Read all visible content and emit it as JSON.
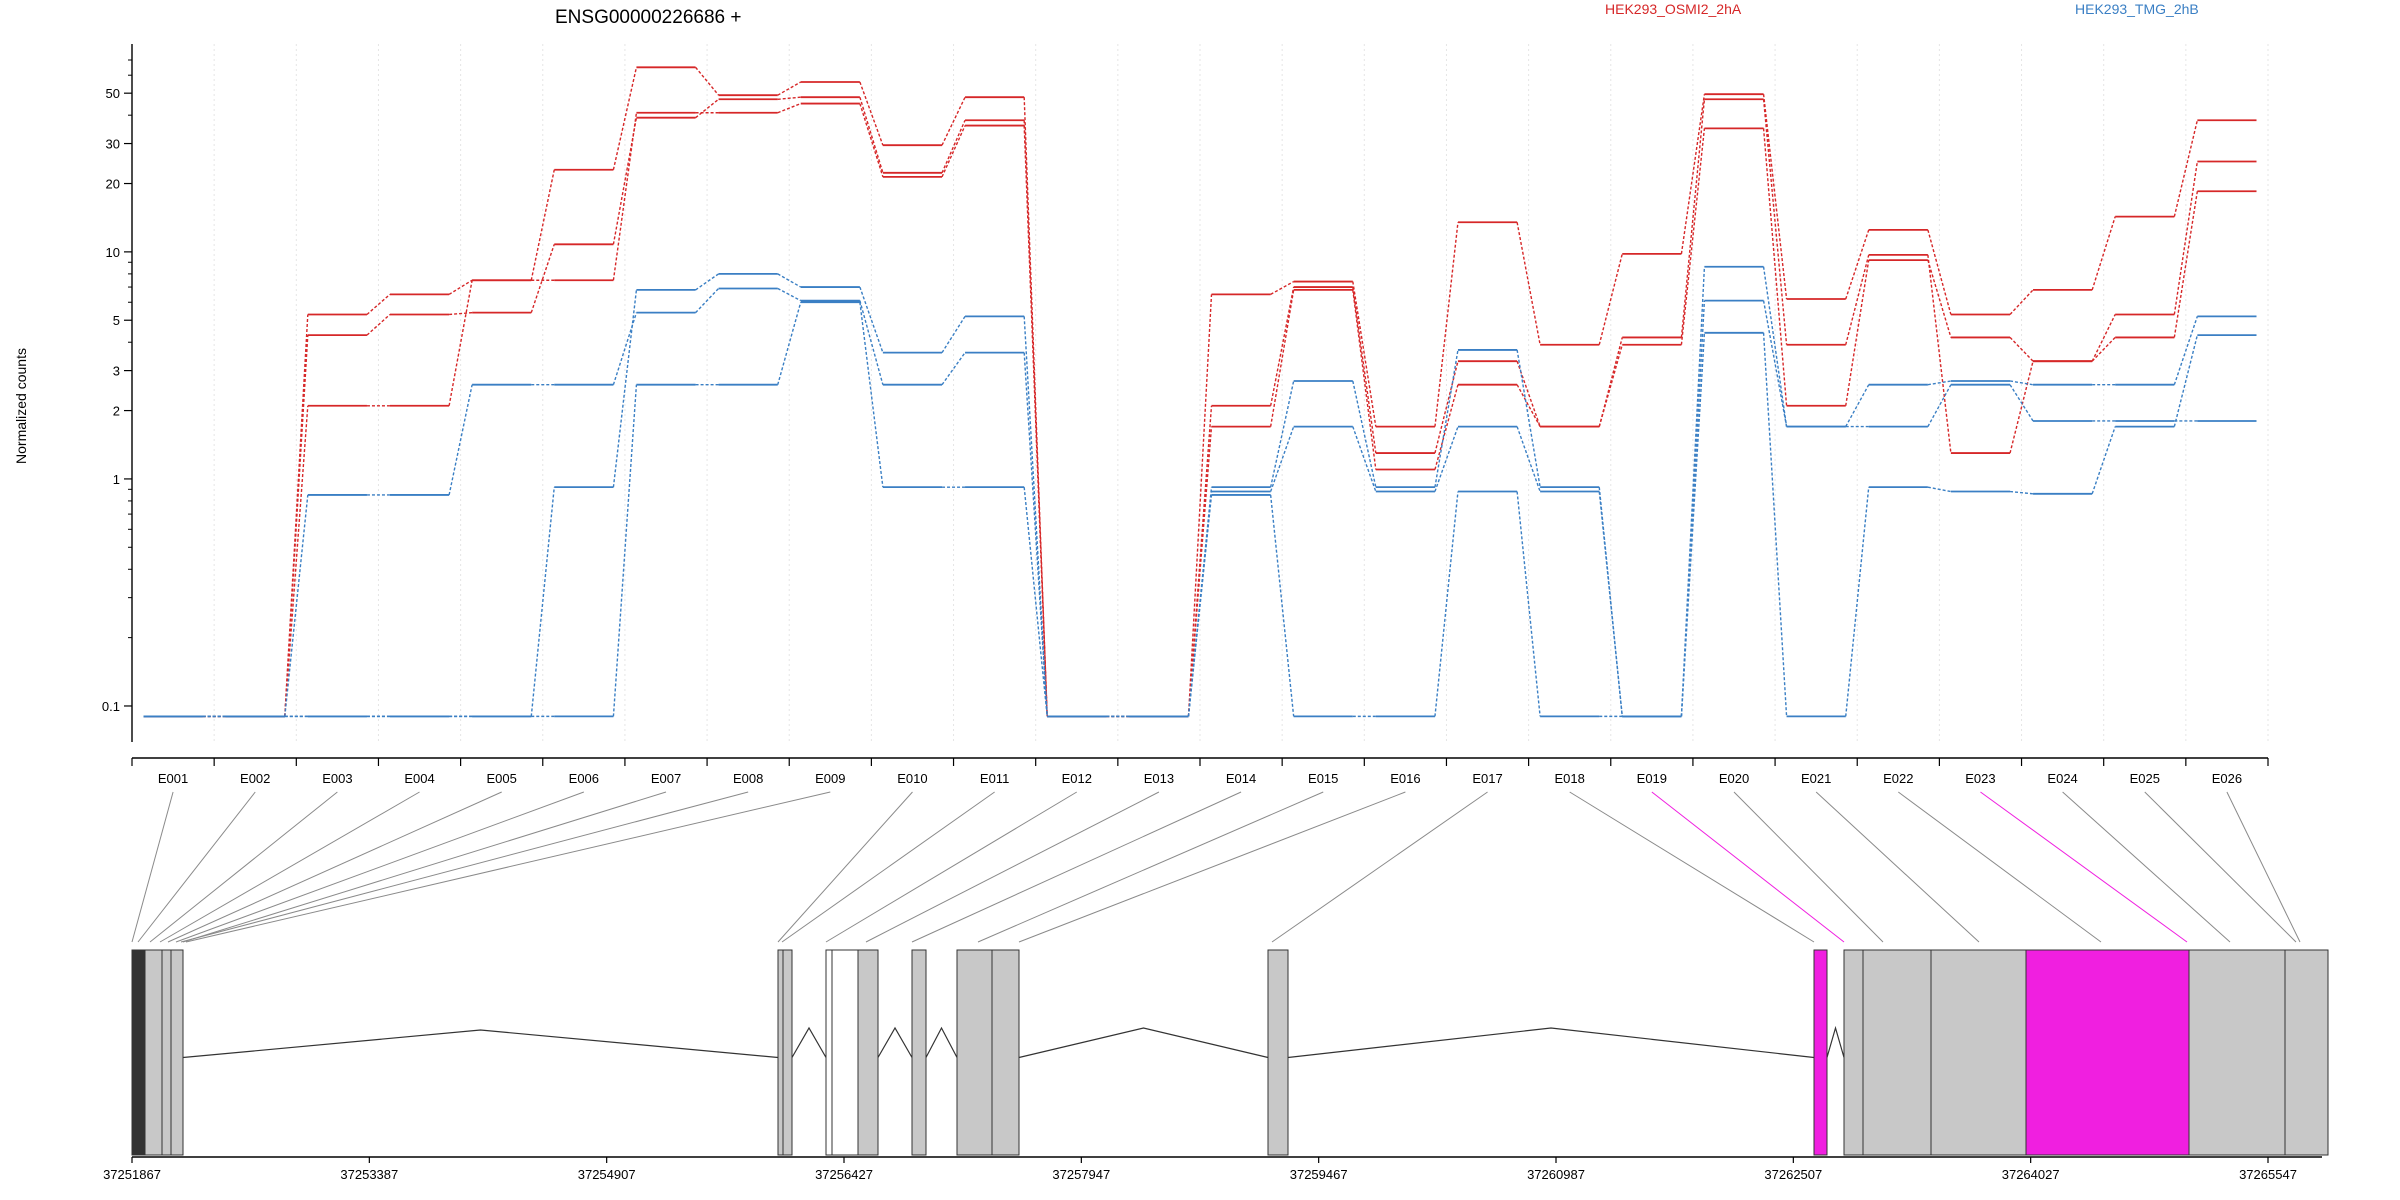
{
  "chart_data": {
    "type": "line",
    "title": "ENSG00000226686 +",
    "ylabel": "Normalized counts",
    "y_scale": "log",
    "y_ticks": [
      0.1,
      1,
      2,
      3,
      5,
      10,
      20,
      30,
      50
    ],
    "ylim": [
      0.085,
      70
    ],
    "grid": "vertical dotted lines at exon boundaries",
    "legend": [
      {
        "label": "HEK293_OSMI2_2hA",
        "color": "#d62728"
      },
      {
        "label": "HEK293_TMG_2hB",
        "color": "#3a7fc4"
      }
    ],
    "categories": [
      "E001",
      "E002",
      "E003",
      "E004",
      "E005",
      "E006",
      "E007",
      "E008",
      "E009",
      "E010",
      "E011",
      "E012",
      "E013",
      "E014",
      "E015",
      "E016",
      "E017",
      "E018",
      "E019",
      "E020",
      "E021",
      "E022",
      "E023",
      "E024",
      "E025",
      "E026"
    ],
    "series": [
      {
        "group": "HEK293_OSMI2_2hA",
        "color": "#d62728",
        "values": [
          0.09,
          0.09,
          5.3,
          6.5,
          7.5,
          23,
          65,
          49,
          56,
          29.5,
          48,
          0.09,
          0.09,
          6.5,
          7.4,
          1.7,
          13.5,
          3.9,
          9.8,
          49.5,
          6.2,
          12.5,
          5.3,
          6.8,
          14.3,
          38
        ]
      },
      {
        "group": "HEK293_OSMI2_2hA",
        "color": "#d62728",
        "values": [
          0.09,
          0.09,
          4.3,
          5.3,
          5.4,
          10.8,
          39,
          47,
          48,
          22.3,
          38,
          0.09,
          0.09,
          2.1,
          7,
          1.3,
          3.3,
          1.7,
          4.2,
          47,
          3.9,
          9.7,
          1.3,
          3.3,
          5.3,
          25
        ]
      },
      {
        "group": "HEK293_OSMI2_2hA",
        "color": "#d62728",
        "values": [
          0.09,
          0.09,
          2.1,
          2.1,
          7.5,
          7.5,
          41,
          41,
          45,
          21.4,
          36,
          0.09,
          0.09,
          1.7,
          6.8,
          1.1,
          2.6,
          1.7,
          3.9,
          35,
          2.1,
          9.2,
          4.2,
          3.3,
          4.2,
          18.5
        ]
      },
      {
        "group": "HEK293_TMG_2hB",
        "color": "#3a7fc4",
        "values": [
          0.09,
          0.09,
          0.09,
          0.09,
          0.09,
          0.92,
          6.8,
          8,
          7,
          3.6,
          5.2,
          0.09,
          0.09,
          0.92,
          2.7,
          0.92,
          3.7,
          0.92,
          0.09,
          8.6,
          1.7,
          2.6,
          2.7,
          2.6,
          2.6,
          5.2
        ]
      },
      {
        "group": "HEK293_TMG_2hB",
        "color": "#3a7fc4",
        "values": [
          0.09,
          0.09,
          0.85,
          0.85,
          2.6,
          2.6,
          5.4,
          6.9,
          6.1,
          2.6,
          3.6,
          0.09,
          0.09,
          0.88,
          1.7,
          0.88,
          1.7,
          0.88,
          0.09,
          6.1,
          1.7,
          1.7,
          2.6,
          1.8,
          1.8,
          1.8
        ]
      },
      {
        "group": "HEK293_TMG_2hB",
        "color": "#3a7fc4",
        "values": [
          0.09,
          0.09,
          0.09,
          0.09,
          0.09,
          0.09,
          2.6,
          2.6,
          6,
          0.92,
          0.92,
          0.09,
          0.09,
          0.85,
          0.09,
          0.09,
          0.88,
          0.09,
          0.09,
          4.4,
          0.09,
          0.92,
          0.88,
          0.86,
          1.7,
          4.3
        ]
      }
    ],
    "genome_track": {
      "axis_labels": [
        "37251867",
        "37253387",
        "37254907",
        "37256427",
        "37257947",
        "37259467",
        "37260987",
        "37262507",
        "37264027",
        "37265547"
      ],
      "highlight_color": "#f01fe0",
      "highlighted_exons": [
        "E019",
        "E023"
      ]
    }
  }
}
